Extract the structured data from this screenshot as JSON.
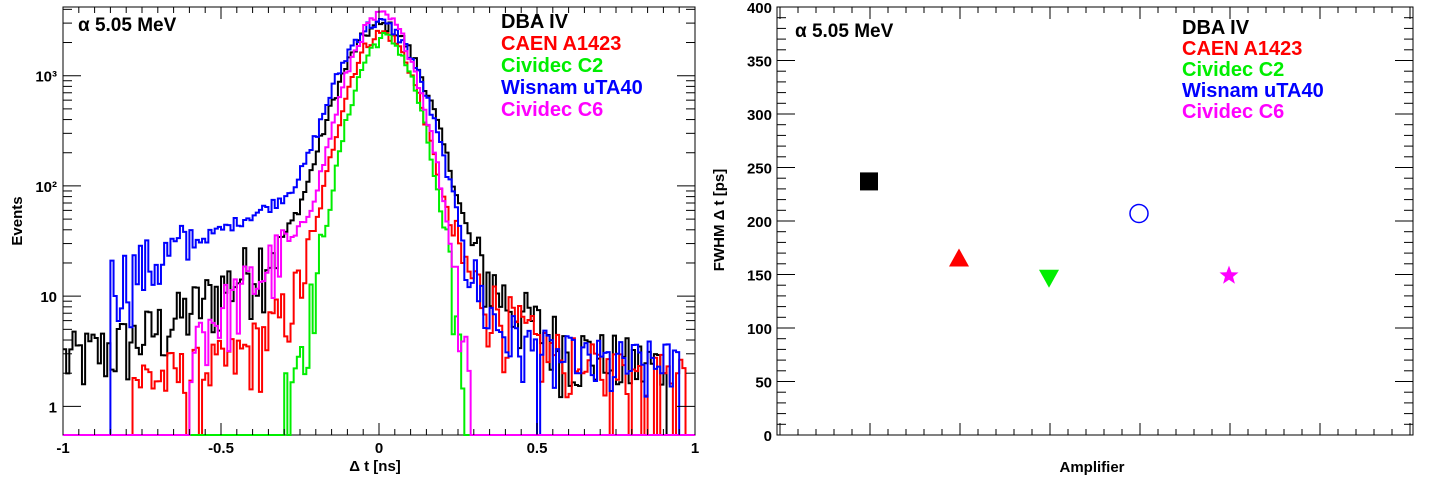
{
  "chart_data": [
    {
      "type": "line",
      "subtype": "histogram",
      "annotation": "α 5.05 MeV",
      "xlabel": "Δ t [ns]",
      "ylabel": "Events",
      "xlim": [
        -1,
        1
      ],
      "ylim": [
        0.55,
        4200
      ],
      "y_scale": "log",
      "grid": false,
      "legend_position": "top-right",
      "x_ticks": [
        -1,
        -0.5,
        0,
        0.5,
        1
      ],
      "x_tick_labels": [
        "-1",
        "-0.5",
        "0",
        "0.5",
        "1"
      ],
      "y_ticks": [
        1,
        10,
        100,
        1000
      ],
      "y_tick_labels": [
        "1",
        "10",
        "10²",
        "10³"
      ],
      "series": [
        {
          "name": "DBA IV",
          "color": "#000000",
          "shape": "gaussian",
          "peak": 2700,
          "center": 0.01,
          "sigma": 0.085,
          "tail_left": 0.17,
          "tail_right": 0.12,
          "floor": 2.2,
          "fall_left": -1.0,
          "fall_right": 0.92
        },
        {
          "name": "CAEN A1423",
          "color": "#ff0000",
          "shape": "gaussian",
          "peak": 2300,
          "center": 0.01,
          "sigma": 0.07,
          "tail_left": 0.09,
          "tail_right": 0.11,
          "floor": 1.8,
          "fall_left": -0.78,
          "fall_right": 0.98
        },
        {
          "name": "Cividec C2",
          "color": "#00ee00",
          "shape": "gaussian",
          "peak": 2100,
          "center": 0.02,
          "sigma": 0.065,
          "tail_left": 0.07,
          "tail_right": 0.04,
          "floor": 0,
          "fall_left": -0.3,
          "fall_right": 0.28
        },
        {
          "name": "Wisnam uTA40",
          "color": "#0000ff",
          "shape": "gaussian",
          "peak": 2850,
          "center": 0.0,
          "sigma": 0.085,
          "tail_left": 0.3,
          "tail_right": 0.09,
          "floor": 2.3,
          "fall_left": -0.85,
          "fall_right": 0.95
        },
        {
          "name": "Cividec C6",
          "color": "#ff00ff",
          "shape": "gaussian",
          "peak": 3300,
          "center": 0.01,
          "sigma": 0.07,
          "tail_left": 0.14,
          "tail_right": 0.045,
          "floor": 1.2,
          "fall_left": -0.6,
          "fall_right": 0.29
        }
      ]
    },
    {
      "type": "scatter",
      "annotation": "α 5.05 MeV",
      "xlabel": "Amplifier",
      "ylabel": "FWHM Δ t [ps]",
      "xlim": [
        0,
        6.5
      ],
      "ylim": [
        0,
        400
      ],
      "grid": false,
      "legend_position": "top-right",
      "y_ticks": [
        0,
        50,
        100,
        150,
        200,
        250,
        300,
        350,
        400
      ],
      "y_tick_labels": [
        "0",
        "50",
        "100",
        "150",
        "200",
        "250",
        "300",
        "350",
        "400"
      ],
      "series": [
        {
          "name": "DBA IV",
          "color": "#000000",
          "marker": "square",
          "x": 1,
          "y": 237
        },
        {
          "name": "CAEN A1423",
          "color": "#ff0000",
          "marker": "triangle-up",
          "x": 2,
          "y": 165
        },
        {
          "name": "Cividec C2",
          "color": "#00ee00",
          "marker": "triangle-down",
          "x": 3,
          "y": 147
        },
        {
          "name": "Wisnam uTA40",
          "color": "#0000ff",
          "marker": "circle-open",
          "x": 4,
          "y": 207
        },
        {
          "name": "Cividec C6",
          "color": "#ff00ff",
          "marker": "star",
          "x": 5,
          "y": 149
        }
      ]
    }
  ]
}
